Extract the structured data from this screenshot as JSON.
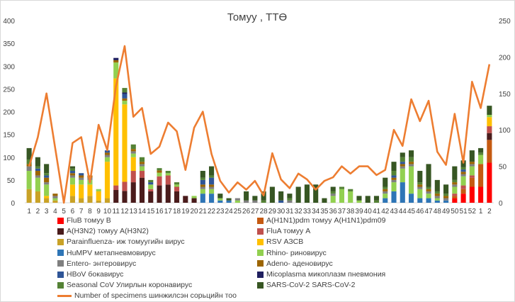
{
  "chart_data": {
    "type": "bar",
    "title": "Томуу , ТТӨ",
    "categories": [
      "1",
      "2",
      "3",
      "4",
      "5",
      "6",
      "7",
      "8",
      "9",
      "10",
      "11",
      "12",
      "13",
      "14",
      "15",
      "16",
      "17",
      "18",
      "19",
      "20",
      "21",
      "22",
      "23",
      "24",
      "25",
      "26",
      "27",
      "28",
      "29",
      "30",
      "31",
      "32",
      "33",
      "34",
      "35",
      "36",
      "37",
      "38",
      "39",
      "40",
      "41",
      "42",
      "43",
      "44",
      "45",
      "46",
      "47",
      "48",
      "49",
      "50",
      "51",
      "52",
      "1",
      "2"
    ],
    "y_left": {
      "min": 0,
      "max": 400,
      "ticks": [
        0,
        50,
        100,
        150,
        200,
        250,
        300,
        350,
        400
      ]
    },
    "y_right": {
      "min": 0,
      "max": 250,
      "ticks": [
        0,
        50,
        100,
        150,
        200,
        250
      ]
    },
    "stacked": true,
    "grid": false,
    "legend_position": "bottom",
    "series": [
      {
        "name": "FluB томуу B",
        "color": "#ff0000",
        "values": [
          0,
          0,
          0,
          0,
          0,
          0,
          0,
          0,
          0,
          0,
          0,
          0,
          0,
          0,
          0,
          0,
          0,
          0,
          0,
          0,
          0,
          0,
          0,
          0,
          0,
          0,
          0,
          0,
          0,
          0,
          0,
          0,
          0,
          0,
          0,
          0,
          0,
          0,
          0,
          0,
          0,
          0,
          0,
          0,
          0,
          0,
          0,
          0,
          0,
          10,
          20,
          35,
          35,
          88
        ]
      },
      {
        "name": "A(H1N1)pdm томуу A(H1N1)pdm09",
        "color": "#c55a11",
        "values": [
          0,
          0,
          0,
          0,
          0,
          0,
          0,
          0,
          0,
          0,
          0,
          0,
          0,
          0,
          0,
          0,
          0,
          0,
          0,
          0,
          0,
          0,
          0,
          0,
          0,
          0,
          0,
          0,
          0,
          0,
          0,
          0,
          0,
          0,
          0,
          0,
          0,
          0,
          0,
          0,
          0,
          0,
          0,
          0,
          0,
          0,
          0,
          0,
          0,
          5,
          10,
          20,
          50,
          50
        ]
      },
      {
        "name": "A(H3N2) томуу A(H3N2)",
        "color": "#4a1c1c",
        "values": [
          0,
          0,
          0,
          0,
          0,
          0,
          0,
          0,
          0,
          0,
          28,
          26,
          45,
          55,
          25,
          38,
          40,
          25,
          15,
          10,
          0,
          0,
          0,
          0,
          0,
          0,
          0,
          0,
          0,
          0,
          0,
          0,
          0,
          0,
          0,
          0,
          0,
          0,
          0,
          0,
          0,
          0,
          0,
          0,
          0,
          0,
          0,
          0,
          0,
          0,
          0,
          0,
          0,
          15
        ]
      },
      {
        "name": "FluA томуу A",
        "color": "#c0504d",
        "values": [
          0,
          0,
          0,
          0,
          0,
          0,
          0,
          0,
          0,
          0,
          10,
          20,
          25,
          15,
          5,
          20,
          20,
          10,
          0,
          0,
          0,
          0,
          0,
          0,
          0,
          0,
          0,
          0,
          0,
          0,
          0,
          0,
          0,
          0,
          0,
          0,
          0,
          0,
          0,
          0,
          0,
          0,
          0,
          0,
          0,
          0,
          0,
          0,
          0,
          5,
          8,
          5,
          0,
          15
        ]
      },
      {
        "name": "Parainfluenza- иж томуугийн вирус",
        "color": "#c9a227",
        "values": [
          30,
          25,
          10,
          5,
          0,
          15,
          10,
          15,
          5,
          10,
          0,
          0,
          0,
          0,
          0,
          0,
          0,
          0,
          0,
          0,
          0,
          0,
          0,
          0,
          0,
          0,
          0,
          0,
          0,
          0,
          0,
          0,
          0,
          0,
          0,
          0,
          0,
          0,
          0,
          0,
          0,
          0,
          0,
          0,
          0,
          0,
          0,
          0,
          0,
          0,
          0,
          0,
          0,
          0
        ]
      },
      {
        "name": "RSV АЗСВ",
        "color": "#ffc000",
        "values": [
          0,
          0,
          5,
          0,
          0,
          25,
          30,
          25,
          20,
          80,
          235,
          170,
          30,
          0,
          0,
          0,
          0,
          0,
          0,
          0,
          0,
          0,
          0,
          0,
          0,
          0,
          0,
          0,
          0,
          0,
          0,
          0,
          0,
          0,
          0,
          0,
          0,
          0,
          0,
          0,
          0,
          0,
          0,
          0,
          0,
          0,
          0,
          0,
          0,
          0,
          0,
          0,
          0,
          20
        ]
      },
      {
        "name": "HuMPV метапневмовирус",
        "color": "#2e75b6",
        "values": [
          0,
          0,
          0,
          0,
          0,
          0,
          0,
          0,
          0,
          0,
          0,
          0,
          0,
          0,
          0,
          0,
          0,
          0,
          0,
          0,
          20,
          20,
          5,
          5,
          0,
          0,
          0,
          0,
          0,
          0,
          0,
          0,
          0,
          0,
          0,
          0,
          0,
          0,
          0,
          0,
          0,
          10,
          25,
          45,
          20,
          10,
          10,
          5,
          5,
          0,
          0,
          0,
          0,
          0
        ]
      },
      {
        "name": "Rhino- риновирус",
        "color": "#92d050",
        "values": [
          40,
          30,
          25,
          5,
          0,
          15,
          10,
          10,
          5,
          10,
          35,
          8,
          8,
          10,
          10,
          8,
          5,
          5,
          0,
          5,
          10,
          10,
          5,
          0,
          5,
          0,
          0,
          0,
          0,
          0,
          0,
          0,
          0,
          0,
          0,
          15,
          30,
          25,
          5,
          0,
          0,
          10,
          20,
          30,
          60,
          20,
          10,
          5,
          0,
          15,
          20,
          20,
          20,
          5
        ]
      },
      {
        "name": "Entero- энтеровирус",
        "color": "#7f7f7f",
        "values": [
          10,
          5,
          5,
          5,
          0,
          5,
          5,
          5,
          0,
          5,
          0,
          0,
          5,
          5,
          0,
          0,
          0,
          0,
          0,
          0,
          5,
          5,
          0,
          0,
          5,
          5,
          5,
          0,
          0,
          0,
          5,
          0,
          0,
          0,
          0,
          5,
          0,
          0,
          0,
          0,
          0,
          5,
          5,
          5,
          5,
          5,
          5,
          5,
          5,
          5,
          5,
          5,
          0,
          0
        ]
      },
      {
        "name": "Adeno- аденовирус",
        "color": "#9c6500",
        "values": [
          5,
          10,
          10,
          5,
          0,
          5,
          5,
          5,
          0,
          5,
          5,
          5,
          5,
          5,
          0,
          5,
          0,
          0,
          0,
          0,
          5,
          5,
          0,
          0,
          0,
          0,
          0,
          0,
          0,
          0,
          0,
          0,
          0,
          0,
          0,
          0,
          0,
          0,
          0,
          0,
          0,
          5,
          5,
          5,
          5,
          5,
          5,
          5,
          5,
          5,
          5,
          5,
          0,
          0
        ]
      },
      {
        "name": "HBoV бокавирус",
        "color": "#2f5597",
        "values": [
          0,
          5,
          5,
          0,
          0,
          5,
          5,
          0,
          0,
          5,
          0,
          10,
          0,
          0,
          5,
          0,
          0,
          0,
          0,
          0,
          10,
          15,
          0,
          0,
          0,
          0,
          0,
          0,
          0,
          5,
          0,
          0,
          0,
          0,
          0,
          0,
          0,
          0,
          0,
          0,
          0,
          0,
          5,
          5,
          0,
          0,
          0,
          0,
          0,
          0,
          5,
          0,
          0,
          0
        ]
      },
      {
        "name": "Micoplasma микоплазм пневмония",
        "color": "#1f1f5f",
        "values": [
          0,
          0,
          0,
          0,
          0,
          0,
          0,
          0,
          0,
          0,
          5,
          3,
          0,
          0,
          0,
          0,
          0,
          0,
          0,
          0,
          0,
          0,
          0,
          0,
          0,
          0,
          0,
          0,
          0,
          0,
          0,
          0,
          0,
          0,
          0,
          0,
          0,
          0,
          0,
          0,
          0,
          0,
          0,
          0,
          0,
          0,
          0,
          0,
          0,
          0,
          0,
          0,
          0,
          0
        ]
      },
      {
        "name": "Seasonal CoV Улирлын коронавирус",
        "color": "#548235",
        "values": [
          10,
          5,
          5,
          0,
          0,
          5,
          0,
          0,
          0,
          0,
          0,
          10,
          10,
          10,
          5,
          5,
          5,
          5,
          0,
          0,
          5,
          5,
          0,
          0,
          0,
          0,
          0,
          5,
          0,
          0,
          5,
          0,
          0,
          0,
          0,
          5,
          5,
          5,
          0,
          0,
          5,
          5,
          10,
          10,
          10,
          5,
          5,
          5,
          5,
          5,
          5,
          0,
          5,
          0
        ]
      },
      {
        "name": "SARS-CoV-2 SARS-CoV-2",
        "color": "#375623",
        "values": [
          25,
          20,
          20,
          0,
          0,
          5,
          0,
          0,
          0,
          0,
          0,
          0,
          0,
          0,
          0,
          0,
          0,
          0,
          0,
          0,
          15,
          20,
          10,
          5,
          0,
          20,
          10,
          20,
          35,
          20,
          10,
          35,
          40,
          40,
          10,
          10,
          0,
          0,
          10,
          15,
          10,
          20,
          20,
          10,
          15,
          25,
          50,
          25,
          20,
          30,
          15,
          25,
          10,
          20
        ]
      },
      {
        "name": "Number of specimens шинжилсэн сорьцийн тоо",
        "color": "#ed7d31",
        "type": "line",
        "axis": "right",
        "values": [
          50,
          90,
          150,
          75,
          0,
          82,
          90,
          28,
          107,
          72,
          160,
          215,
          118,
          130,
          67,
          77,
          110,
          98,
          45,
          103,
          125,
          67,
          30,
          14,
          28,
          18,
          30,
          10,
          68,
          32,
          20,
          40,
          32,
          18,
          30,
          35,
          50,
          40,
          50,
          50,
          38,
          45,
          100,
          78,
          142,
          112,
          140,
          70,
          52,
          122,
          55,
          166,
          130,
          190
        ]
      }
    ]
  }
}
